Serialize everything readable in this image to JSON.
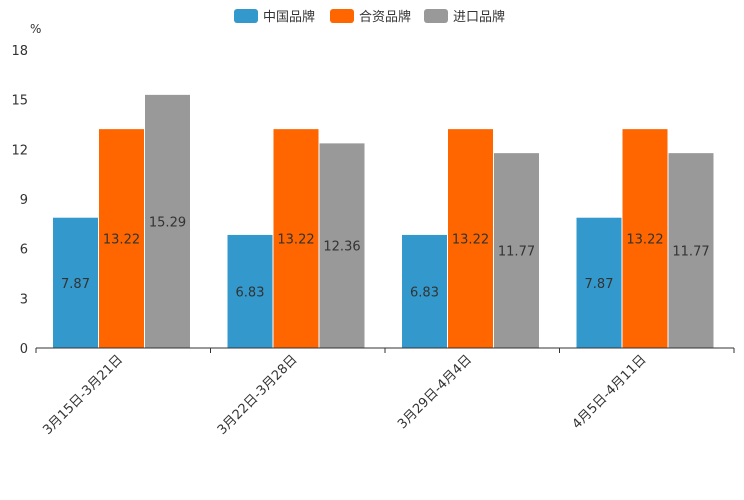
{
  "chart_data": {
    "type": "bar",
    "title": "",
    "unit_label": "%",
    "xlabel": "",
    "ylabel": "%",
    "ylim": [
      0,
      18
    ],
    "yticks": [
      0,
      3,
      6,
      9,
      12,
      15,
      18
    ],
    "grid": false,
    "legend_position": "top",
    "categories": [
      "3月15日-3月21日",
      "3月22日-3月28日",
      "3月29日-4月4日",
      "4月5日-4月11日"
    ],
    "series": [
      {
        "name": "中国品牌",
        "color": "#3399cc",
        "values": [
          7.87,
          6.83,
          6.83,
          7.87
        ]
      },
      {
        "name": "合资品牌",
        "color": "#ff6600",
        "values": [
          13.22,
          13.22,
          13.22,
          13.22
        ]
      },
      {
        "name": "进口品牌",
        "color": "#999999",
        "values": [
          15.29,
          12.36,
          11.77,
          11.77
        ]
      }
    ]
  }
}
